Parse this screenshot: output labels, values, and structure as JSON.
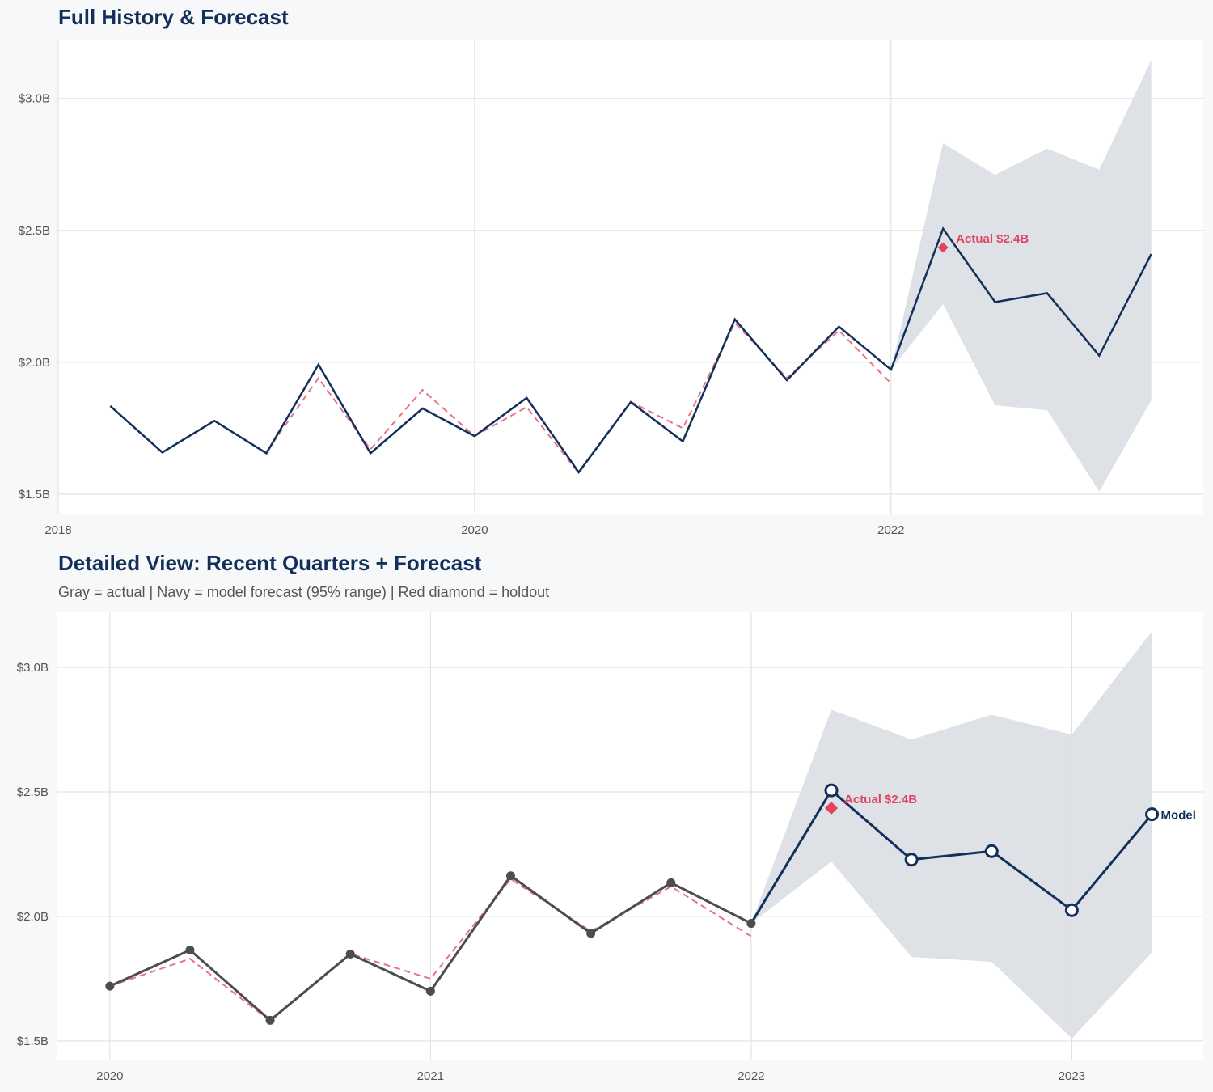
{
  "colors": {
    "navy": "#13305a",
    "gray": "#4d4d4d",
    "red": "#e04462",
    "band": "#dce0e6",
    "grid": "#dddddd",
    "plot_bg": "#ffffff"
  },
  "chart_data": [
    {
      "type": "line",
      "title": "Full History & Forecast",
      "xlim": [
        2018,
        2023.5
      ],
      "ylim": [
        1.426,
        3.22
      ],
      "x_ticks": [
        2018,
        2020,
        2022
      ],
      "x_tick_labels": [
        "2018",
        "2020",
        "2022"
      ],
      "y_ticks": [
        1.5,
        2.0,
        2.5,
        3.0
      ],
      "y_tick_labels": [
        "$1.5B",
        "$2.0B",
        "$2.5B",
        "$3.0B"
      ],
      "grid": true,
      "annotation": {
        "text": "Actual $2.4B",
        "x": 2022.25,
        "y": 2.435
      }
    },
    {
      "type": "line",
      "title": "Detailed View: Recent Quarters + Forecast",
      "subtitle": "Gray = actual  |  Navy = model forecast (95% range)  |  Red diamond = holdout",
      "xlim": [
        2019.834,
        2023.41
      ],
      "ylim": [
        1.425,
        3.224
      ],
      "x_ticks": [
        2020,
        2021,
        2022,
        2023
      ],
      "x_tick_labels": [
        "2020",
        "2021",
        "2022",
        "2023"
      ],
      "y_ticks": [
        1.5,
        2.0,
        2.5,
        3.0
      ],
      "y_tick_labels": [
        "$1.5B",
        "$2.0B",
        "$2.5B",
        "$3.0B"
      ],
      "grid": true,
      "annotation": {
        "text": "Actual $2.4B",
        "x": 2022.25,
        "y": 2.435
      },
      "end_label": "Model"
    }
  ],
  "series": {
    "actual": {
      "x": [
        2018.25,
        2018.5,
        2018.75,
        2019.0,
        2019.25,
        2019.5,
        2019.75,
        2020.0,
        2020.25,
        2020.5,
        2020.75,
        2021.0,
        2021.25,
        2021.5,
        2021.75,
        2022.0
      ],
      "y": [
        1.834,
        1.658,
        1.778,
        1.655,
        1.991,
        1.655,
        1.825,
        1.72,
        1.865,
        1.583,
        1.849,
        1.7,
        2.163,
        1.932,
        2.135,
        1.972
      ]
    },
    "fitted": {
      "x": [
        2019.0,
        2019.25,
        2019.5,
        2019.75,
        2020.0,
        2020.25,
        2020.5,
        2020.75,
        2021.0,
        2021.25,
        2021.5,
        2021.75,
        2022.0
      ],
      "y": [
        1.66,
        1.94,
        1.67,
        1.895,
        1.72,
        1.83,
        1.58,
        1.85,
        1.75,
        2.15,
        1.94,
        2.12,
        1.92
      ]
    },
    "forecast": {
      "x": [
        2022.0,
        2022.25,
        2022.5,
        2022.75,
        2023.0,
        2023.25
      ],
      "y": [
        1.972,
        2.506,
        2.228,
        2.262,
        2.025,
        2.41
      ],
      "lower": [
        1.972,
        2.22,
        1.837,
        1.818,
        1.51,
        1.855
      ],
      "upper": [
        1.972,
        2.83,
        2.71,
        2.81,
        2.73,
        3.145
      ]
    },
    "holdout": {
      "x": 2022.25,
      "y": 2.435
    }
  }
}
